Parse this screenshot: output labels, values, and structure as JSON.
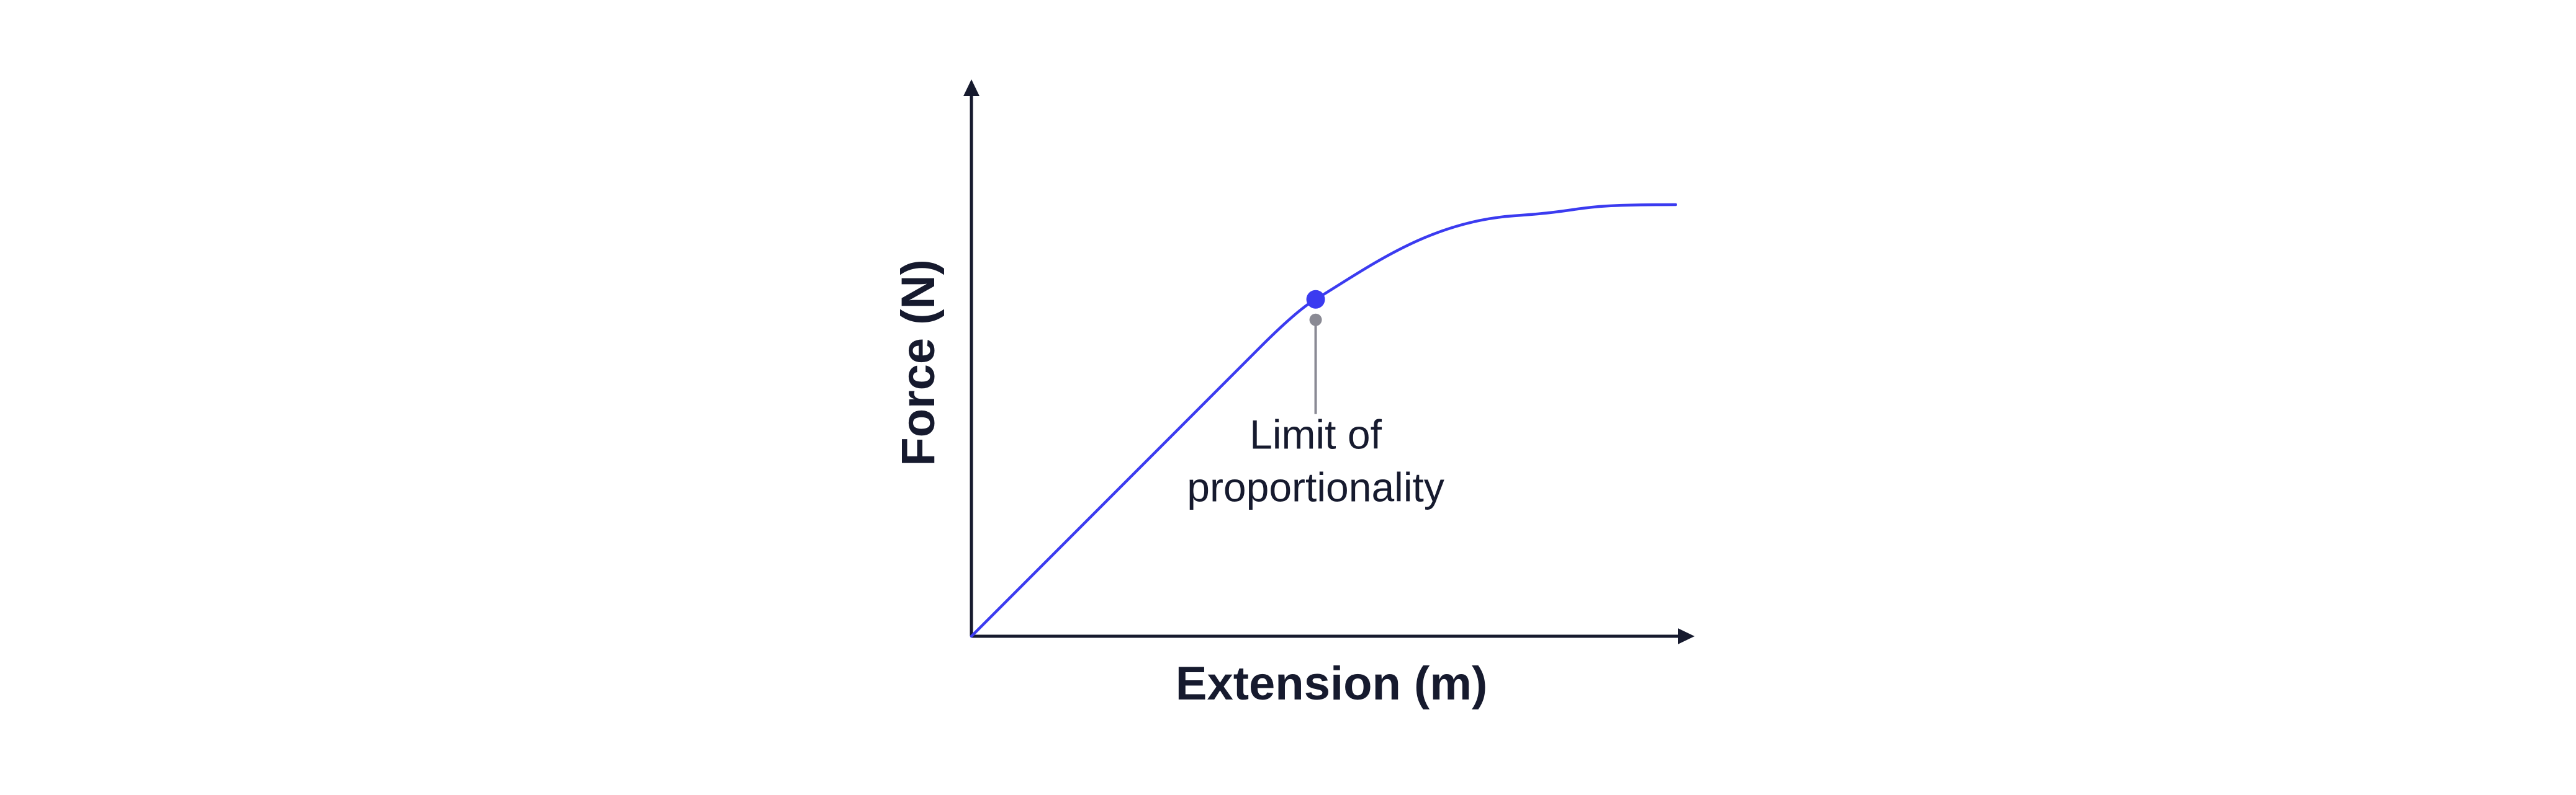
{
  "chart_data": {
    "type": "line",
    "title": "",
    "xlabel": "Extension (m)",
    "ylabel": "Force (N)",
    "xticks": [],
    "yticks": [],
    "grid": false,
    "legend": "none",
    "xlim": [
      0,
      10
    ],
    "ylim": [
      0,
      10
    ],
    "series": [
      {
        "color": "#3b3bf0",
        "points": [
          {
            "x": 0.0,
            "y": 0.0
          },
          {
            "x": 4.0,
            "y": 5.2
          },
          {
            "x": 4.76,
            "y": 6.05
          },
          {
            "x": 6.0,
            "y": 7.0
          },
          {
            "x": 7.5,
            "y": 7.55
          },
          {
            "x": 9.74,
            "y": 7.75
          }
        ]
      }
    ],
    "highlight_point": {
      "x": 4.76,
      "y": 6.05
    },
    "annotation": {
      "lines": [
        "Limit of",
        "proportionality"
      ],
      "x": 4.76,
      "y": 6.05
    }
  },
  "colors": {
    "axis": "#161a2e",
    "curve": "#3b3bf0",
    "marker": "#3b3bf0",
    "leader": "#8a8a94",
    "text": "#161a2e"
  }
}
